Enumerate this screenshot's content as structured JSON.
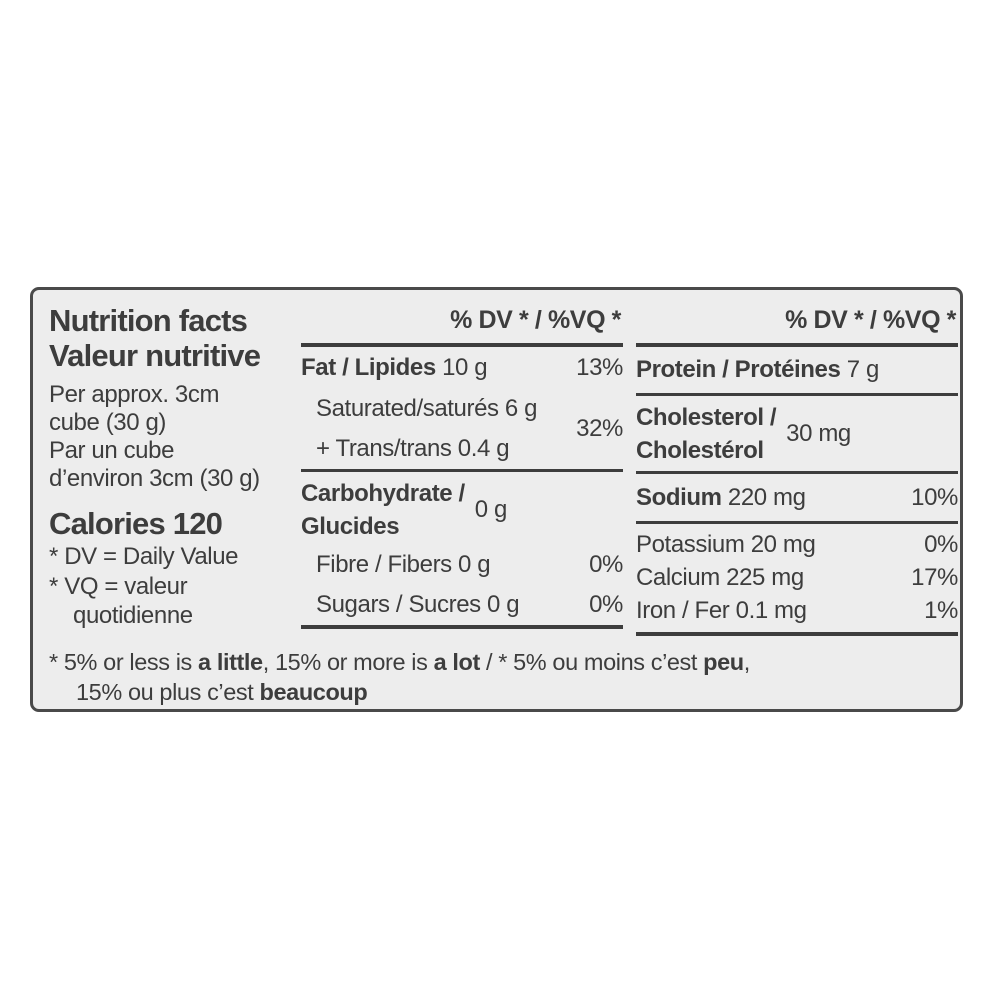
{
  "colors": {
    "text": "#3d3d3d",
    "panel_background": "#ededed",
    "border": "#4a4a4a",
    "page_background": "#ffffff"
  },
  "header": {
    "title_en": "Nutrition facts",
    "title_fr": "Valeur nutritive",
    "serving": {
      "line1": "Per approx. 3cm",
      "line2": "cube (30 g)",
      "line3": "Par un cube",
      "line4": "d’environ 3cm (30 g)"
    },
    "calories": "Calories 120",
    "footnote_dv": "* DV = Daily Value",
    "footnote_vq": "* VQ = valeur quotidienne"
  },
  "mid": {
    "dv_header": "% DV * / %VQ *",
    "fat": {
      "label": "Fat / Lipides",
      "value": "10 g",
      "pct": "13%"
    },
    "sat_trans": {
      "line1": "Saturated/saturés 6 g",
      "line2": "+ Trans/trans 0.4 g",
      "pct": "32%"
    },
    "carb": {
      "line1": "Carbohydrate /",
      "line2": "Glucides",
      "value": "0 g"
    },
    "fibre": {
      "label": "Fibre / Fibers 0 g",
      "pct": "0%"
    },
    "sugars": {
      "label": "Sugars / Sucres 0 g",
      "pct": "0%"
    }
  },
  "right": {
    "dv_header": "% DV * / %VQ *",
    "protein": {
      "label": "Protein / Protéines",
      "value": "7 g"
    },
    "cholesterol": {
      "line1": "Cholesterol /",
      "line2": "Cholestérol",
      "value": "30 mg"
    },
    "sodium": {
      "label": "Sodium",
      "value": "220 mg",
      "pct": "10%"
    },
    "potassium": {
      "label": "Potassium 20 mg",
      "pct": "0%"
    },
    "calcium": {
      "label": "Calcium 225 mg",
      "pct": "17%"
    },
    "iron": {
      "label": "Iron / Fer 0.1 mg",
      "pct": "1%"
    }
  },
  "footer": {
    "line1": {
      "t1": "* 5% or less is ",
      "b1": "a little",
      "t2": ", 15% or more is ",
      "b2": "a lot",
      "t3": " / * 5% ou moins c’est ",
      "b3": "peu",
      "t4": ","
    },
    "line2": {
      "t1": "15% ou plus c’est ",
      "b1": "beaucoup"
    }
  }
}
